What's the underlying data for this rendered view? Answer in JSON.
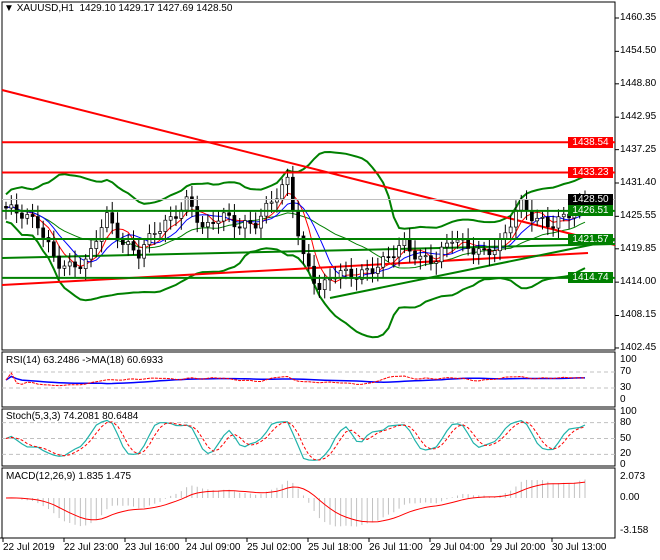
{
  "header": {
    "symbol": "XAUUSD,H1",
    "ohlc": "1429.10 1429.17 1427.69 1428.50"
  },
  "price_axis": [
    "1460.35",
    "1454.50",
    "1448.80",
    "1442.95",
    "1437.25",
    "1431.40",
    "1425.55",
    "1419.85",
    "1414.00",
    "1408.15",
    "1402.45"
  ],
  "levels": [
    {
      "value": "1438.54",
      "color": "#ff0000"
    },
    {
      "value": "1433.23",
      "color": "#ff0000"
    },
    {
      "value": "1426.51",
      "color": "#008000"
    },
    {
      "value": "1421.57",
      "color": "#008000"
    },
    {
      "value": "1414.74",
      "color": "#008000"
    }
  ],
  "current_price": {
    "value": "1428.50",
    "color": "#000000"
  },
  "rsi": {
    "label": "RSI(14) 63.2486  ->MA(18) 60.6933",
    "axis": [
      "100",
      "70",
      "30",
      "0"
    ]
  },
  "stoch": {
    "label": "Stoch(5,3,3) 74.2081 80.6484",
    "axis": [
      "100",
      "80",
      "50",
      "20",
      "0"
    ]
  },
  "macd": {
    "label": "MACD(12,26,9) 1.835 1.475",
    "axis": [
      "2.073",
      "0.00",
      "-3.158"
    ]
  },
  "time_axis": [
    "22 Jul 2019",
    "22 Jul 23:00",
    "23 Jul 16:00",
    "24 Jul 09:00",
    "25 Jul 02:00",
    "25 Jul 18:00",
    "26 Jul 11:00",
    "29 Jul 04:00",
    "29 Jul 20:00",
    "30 Jul 13:00"
  ],
  "chart_data": {
    "type": "candlestick",
    "approx_closes": [
      1427,
      1426,
      1424,
      1417.5,
      1416.5,
      1418,
      1426,
      1421,
      1419,
      1423,
      1425,
      1428.4,
      1423,
      1426,
      1424,
      1424,
      1428,
      1431.9,
      1418,
      1412.6,
      1416,
      1415,
      1416,
      1418,
      1421,
      1418,
      1418,
      1422,
      1420,
      1419,
      1421,
      1428,
      1425,
      1424,
      1426,
      1428.5
    ],
    "trendlines_color": {
      "resistance": "#ff0000",
      "support": "#008000"
    },
    "colors": {
      "bollinger": "#008000",
      "ma_fast": "#ff0000",
      "ma_slow": "#0000ff",
      "stoch_main": "#20b2aa",
      "signal": "#ff0000",
      "macd_hist": "#c0c0c0"
    }
  }
}
